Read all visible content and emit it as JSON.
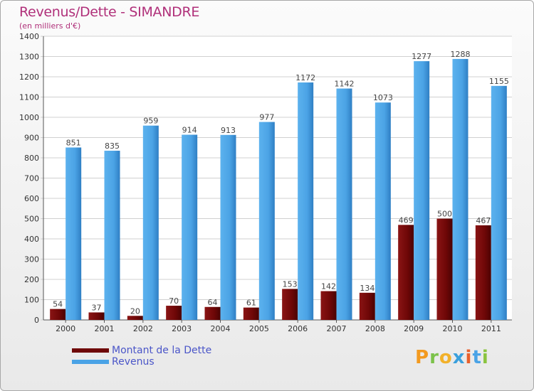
{
  "title": "Revenus/Dette - SIMANDRE",
  "subtitle": "(en milliers d'€)",
  "logo": "Proxiti",
  "chart_data": {
    "type": "bar",
    "categories": [
      "2000",
      "2001",
      "2002",
      "2003",
      "2004",
      "2005",
      "2006",
      "2007",
      "2008",
      "2009",
      "2010",
      "2011"
    ],
    "series": [
      {
        "name": "Montant de la Dette",
        "color": "#7a0a0a",
        "values": [
          54,
          37,
          20,
          70,
          64,
          61,
          153,
          142,
          134,
          469,
          500,
          467
        ]
      },
      {
        "name": "Revenus",
        "color": "#4aa3e6",
        "values": [
          851,
          835,
          959,
          914,
          913,
          977,
          1172,
          1142,
          1073,
          1277,
          1288,
          1155
        ]
      }
    ],
    "ylim": [
      0,
      1400
    ],
    "yticks": [
      0,
      100,
      200,
      300,
      400,
      500,
      600,
      700,
      800,
      900,
      1000,
      1100,
      1200,
      1300,
      1400
    ],
    "grid": true,
    "legend_position": "bottom-left"
  }
}
